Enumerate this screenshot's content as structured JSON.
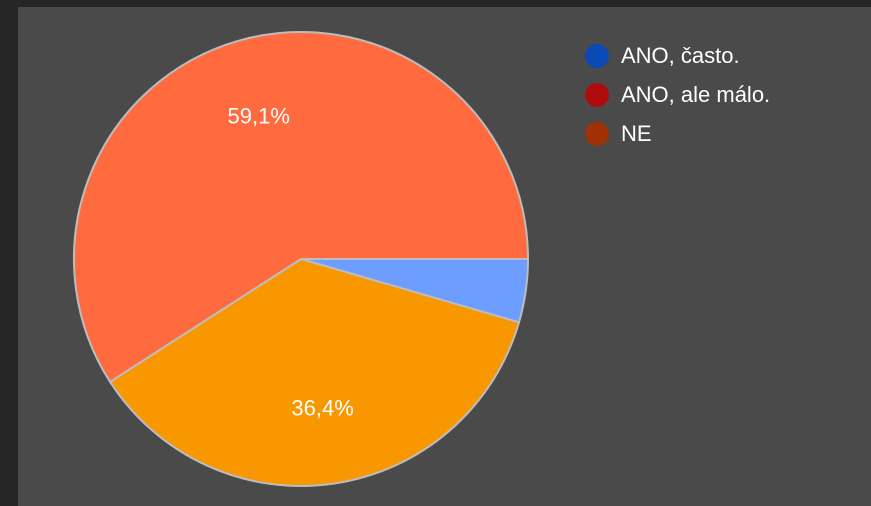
{
  "chart_data": {
    "type": "pie",
    "categories": [
      "ANO, často.",
      "ANO, ale málo.",
      "NE"
    ],
    "values": [
      4.5,
      36.4,
      59.1
    ],
    "slice_labels": [
      "",
      "36,4%",
      "59,1%"
    ],
    "slice_colors": [
      "#6d9eff",
      "#f99700",
      "#ff6a3f"
    ],
    "legend_colors": [
      "#0b49b6",
      "#b00b0b",
      "#a03106"
    ],
    "legend_position": "top-right",
    "start_angle": "3 o'clock",
    "direction": "clockwise"
  },
  "legend": {
    "items": [
      {
        "label": "ANO, často."
      },
      {
        "label": "ANO, ale málo."
      },
      {
        "label": "NE"
      }
    ]
  }
}
